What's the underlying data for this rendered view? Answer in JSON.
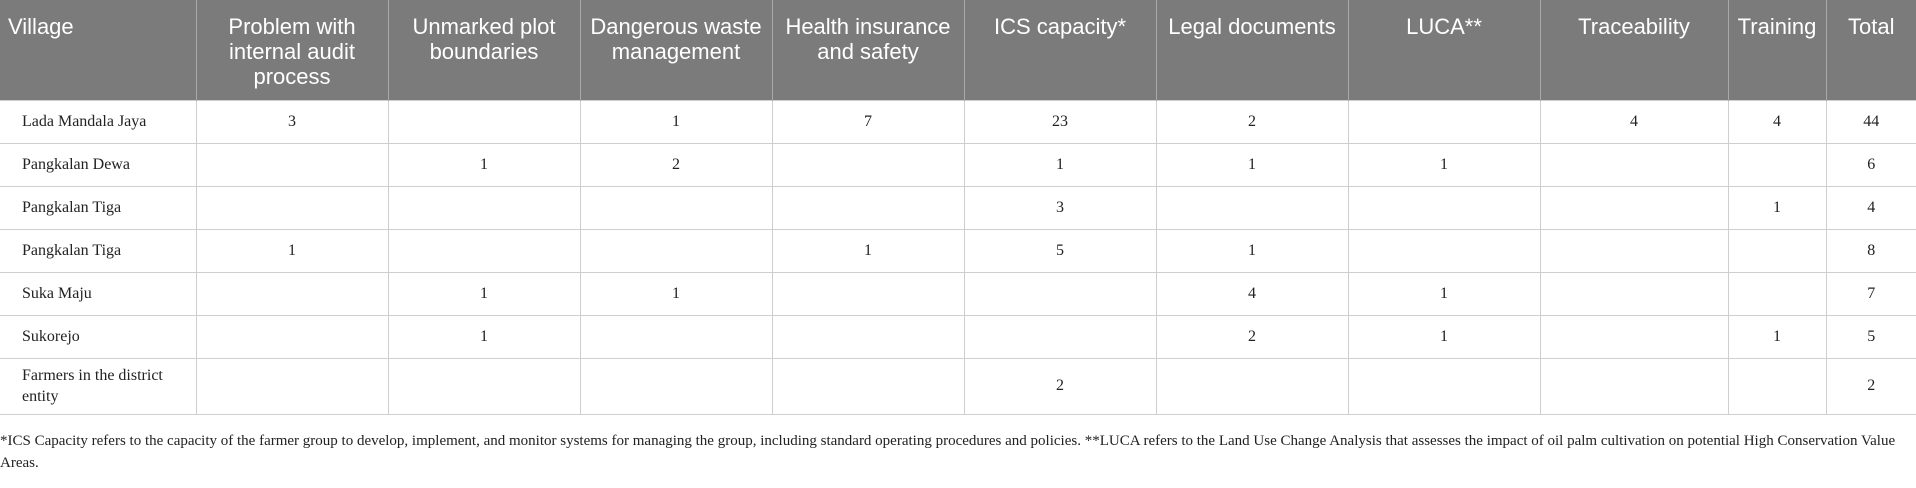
{
  "table": {
    "headers": [
      "Village",
      "Problem with internal audit process",
      "Unmarked plot boundaries",
      "Dangerous waste management",
      "Health insurance and safety",
      "ICS capacity*",
      "Legal documents",
      "LUCA**",
      "Traceability",
      "Training",
      "Total"
    ],
    "rows": [
      [
        "Lada Mandala Jaya",
        "3",
        "",
        "1",
        "7",
        "23",
        "2",
        "",
        "4",
        "4",
        "44"
      ],
      [
        "Pangkalan Dewa",
        "",
        "1",
        "2",
        "",
        "1",
        "1",
        "1",
        "",
        "",
        "6"
      ],
      [
        "Pangkalan Tiga",
        "",
        "",
        "",
        "",
        "3",
        "",
        "",
        "",
        "1",
        "4"
      ],
      [
        "Pangkalan Tiga",
        "1",
        "",
        "",
        "1",
        "5",
        "1",
        "",
        "",
        "",
        "8"
      ],
      [
        "Suka Maju",
        "",
        "1",
        "1",
        "",
        "",
        "4",
        "1",
        "",
        "",
        "7"
      ],
      [
        "Sukorejo",
        "",
        "1",
        "",
        "",
        "",
        "2",
        "1",
        "",
        "1",
        "5"
      ],
      [
        "Farmers in the district entity",
        "",
        "",
        "",
        "",
        "2",
        "",
        "",
        "",
        "",
        "2"
      ]
    ]
  },
  "footnote": "*ICS Capacity refers to the capacity of the farmer group to develop, implement, and monitor systems for managing the group, including standard operating procedures and policies. **LUCA refers to the Land Use Change Analysis that assesses the impact of oil palm cultivation on potential High Conservation Value Areas."
}
